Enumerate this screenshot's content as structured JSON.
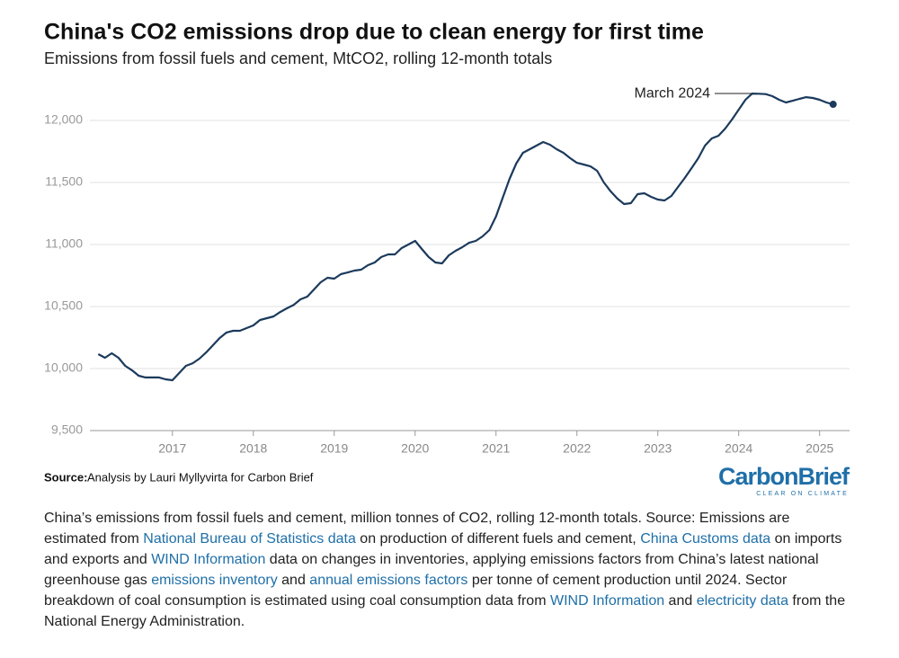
{
  "chart_data": {
    "type": "line",
    "title": "China's CO2 emissions drop due to clean energy for first time",
    "subtitle": "Emissions from fossil fuels and cement, MtCO2, rolling 12-month totals",
    "annotation": "March 2024",
    "source_label": "Source:",
    "source": "Analysis by Lauri Myllyvirta for Carbon Brief",
    "logo": "CarbonBrief",
    "logo_tagline": "CLEAR ON CLIMATE",
    "color": "#1b3a5c",
    "grid": true,
    "xlim": [
      2015.98,
      2025.37
    ],
    "xticks": [
      2017,
      2018,
      2019,
      2020,
      2021,
      2022,
      2023,
      2024,
      2025
    ],
    "ylim": [
      9500,
      12250
    ],
    "yticks": [
      {
        "value": 9500,
        "label": "9,500"
      },
      {
        "value": 10000,
        "label": "10,000"
      },
      {
        "value": 10500,
        "label": "10,500"
      },
      {
        "value": 11000,
        "label": "11,000"
      },
      {
        "value": 11500,
        "label": "11,500"
      },
      {
        "value": 12000,
        "label": "12,000"
      }
    ],
    "x": [
      2016.083,
      2016.167,
      2016.25,
      2016.333,
      2016.417,
      2016.5,
      2016.583,
      2016.667,
      2016.75,
      2016.833,
      2016.917,
      2017.0,
      2017.083,
      2017.167,
      2017.25,
      2017.333,
      2017.417,
      2017.5,
      2017.583,
      2017.667,
      2017.75,
      2017.833,
      2017.917,
      2018.0,
      2018.083,
      2018.167,
      2018.25,
      2018.333,
      2018.417,
      2018.5,
      2018.583,
      2018.667,
      2018.75,
      2018.833,
      2018.917,
      2019.0,
      2019.083,
      2019.167,
      2019.25,
      2019.333,
      2019.417,
      2019.5,
      2019.583,
      2019.667,
      2019.75,
      2019.833,
      2019.917,
      2020.0,
      2020.083,
      2020.167,
      2020.25,
      2020.333,
      2020.417,
      2020.5,
      2020.583,
      2020.667,
      2020.75,
      2020.833,
      2020.917,
      2021.0,
      2021.083,
      2021.167,
      2021.25,
      2021.333,
      2021.417,
      2021.5,
      2021.583,
      2021.667,
      2021.75,
      2021.833,
      2021.917,
      2022.0,
      2022.083,
      2022.167,
      2022.25,
      2022.333,
      2022.417,
      2022.5,
      2022.583,
      2022.667,
      2022.75,
      2022.833,
      2022.917,
      2023.0,
      2023.083,
      2023.167,
      2023.25,
      2023.333,
      2023.417,
      2023.5,
      2023.583,
      2023.667,
      2023.75,
      2023.833,
      2023.917,
      2024.0,
      2024.083,
      2024.167,
      2024.25,
      2024.333,
      2024.417,
      2024.5,
      2024.583,
      2024.667,
      2024.75,
      2024.833,
      2024.917,
      2025.0,
      2025.083,
      2025.167
    ],
    "values": [
      10116,
      10087,
      10123,
      10087,
      10022,
      9986,
      9942,
      9928,
      9928,
      9928,
      9913,
      9906,
      9964,
      10022,
      10043,
      10080,
      10130,
      10188,
      10246,
      10290,
      10304,
      10304,
      10326,
      10348,
      10391,
      10406,
      10420,
      10456,
      10486,
      10514,
      10558,
      10580,
      10638,
      10696,
      10732,
      10725,
      10761,
      10775,
      10790,
      10797,
      10833,
      10855,
      10899,
      10920,
      10920,
      10971,
      11000,
      11029,
      10964,
      10899,
      10855,
      10848,
      10913,
      10949,
      10978,
      11014,
      11029,
      11065,
      11116,
      11225,
      11377,
      11529,
      11652,
      11739,
      11768,
      11797,
      11826,
      11804,
      11768,
      11739,
      11696,
      11659,
      11645,
      11630,
      11594,
      11500,
      11428,
      11370,
      11326,
      11333,
      11406,
      11413,
      11384,
      11362,
      11355,
      11391,
      11464,
      11536,
      11616,
      11696,
      11797,
      11855,
      11877,
      11935,
      12007,
      12087,
      12167,
      12217,
      12215,
      12212,
      12196,
      12167,
      12145,
      12159,
      12174,
      12188,
      12181,
      12167,
      12145,
      12130
    ]
  },
  "caption": [
    {
      "text": "China’s emissions from fossil fuels and cement, million tonnes of CO2, rolling 12-month totals. Source: Emissions are estimated from "
    },
    {
      "text": "National Bureau of Statistics data",
      "link": true
    },
    {
      "text": " on production of different fuels and cement, "
    },
    {
      "text": "China Customs data",
      "link": true
    },
    {
      "text": " on imports and exports and "
    },
    {
      "text": "WIND Information",
      "link": true
    },
    {
      "text": " data on changes in inventories, applying emissions factors from China’s latest national greenhouse gas "
    },
    {
      "text": "emissions inventory",
      "link": true
    },
    {
      "text": " and "
    },
    {
      "text": "annual emissions factors",
      "link": true
    },
    {
      "text": " per tonne of cement production until 2024. Sector breakdown of coal consumption is estimated using coal consumption data from "
    },
    {
      "text": "WIND Information",
      "link": true
    },
    {
      "text": " and "
    },
    {
      "text": "electricity data",
      "link": true
    },
    {
      "text": " from the National Energy Administration."
    }
  ]
}
